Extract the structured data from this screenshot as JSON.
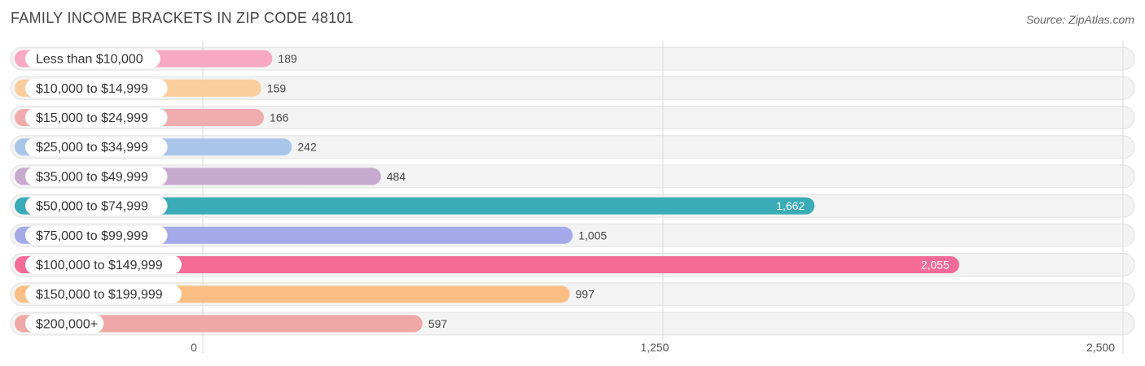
{
  "header": {
    "title": "FAMILY INCOME BRACKETS IN ZIP CODE 48101",
    "source": "Source: ZipAtlas.com"
  },
  "chart_data": {
    "type": "bar",
    "orientation": "horizontal",
    "title": "FAMILY INCOME BRACKETS IN ZIP CODE 48101",
    "categories": [
      "Less than $10,000",
      "$10,000 to $14,999",
      "$15,000 to $24,999",
      "$25,000 to $34,999",
      "$35,000 to $49,999",
      "$50,000 to $74,999",
      "$75,000 to $99,999",
      "$100,000 to $149,999",
      "$150,000 to $199,999",
      "$200,000+"
    ],
    "values": [
      189,
      159,
      166,
      242,
      484,
      1662,
      1005,
      2055,
      997,
      597
    ],
    "value_labels": [
      "189",
      "159",
      "166",
      "242",
      "484",
      "1,662",
      "1,005",
      "2,055",
      "997",
      "597"
    ],
    "colors": [
      "#f7a8c3",
      "#fbcd9f",
      "#f0adae",
      "#a9c6ea",
      "#c8a9cf",
      "#3aacb7",
      "#a5a9e8",
      "#f46b98",
      "#fbbf83",
      "#f0a8a6"
    ],
    "xlim": [
      0,
      2500
    ],
    "ticks": [
      0,
      1250,
      2500
    ],
    "tick_labels": [
      "0",
      "1,250",
      "2,500"
    ],
    "grid": true,
    "xlabel": "",
    "ylabel": ""
  }
}
